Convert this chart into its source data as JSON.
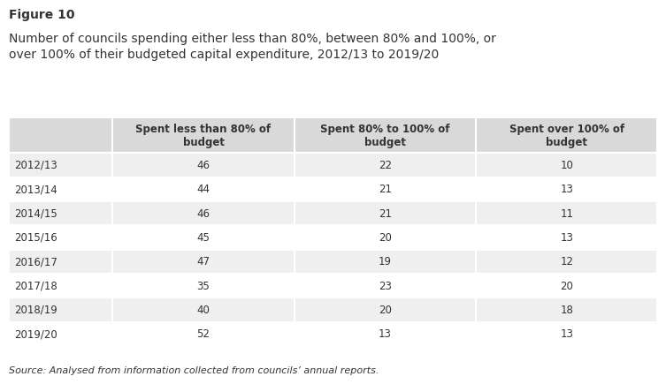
{
  "figure_label": "Figure 10",
  "title_line1": "Number of councils spending either less than 80%, between 80% and 100%, or",
  "title_line2": "over 100% of their budgeted capital expenditure, 2012/13 to 2019/20",
  "col_headers": [
    "Spent less than 80% of\nbudget",
    "Spent 80% to 100% of\nbudget",
    "Spent over 100% of\nbudget"
  ],
  "row_labels": [
    "2012/13",
    "2013/14",
    "2014/15",
    "2015/16",
    "2016/17",
    "2017/18",
    "2018/19",
    "2019/20"
  ],
  "data": [
    [
      46,
      22,
      10
    ],
    [
      44,
      21,
      13
    ],
    [
      46,
      21,
      11
    ],
    [
      45,
      20,
      13
    ],
    [
      47,
      19,
      12
    ],
    [
      35,
      23,
      20
    ],
    [
      40,
      20,
      18
    ],
    [
      52,
      13,
      13
    ]
  ],
  "header_bg": "#d9d9d9",
  "row_bg_odd": "#efefef",
  "row_bg_even": "#ffffff",
  "source_text": "Source: Analysed from information collected from councils’ annual reports.",
  "figure_label_fontsize": 10,
  "title_fontsize": 10,
  "header_fontsize": 8.5,
  "cell_fontsize": 8.5,
  "source_fontsize": 8,
  "text_color": "#333333",
  "bg_color": "#ffffff"
}
